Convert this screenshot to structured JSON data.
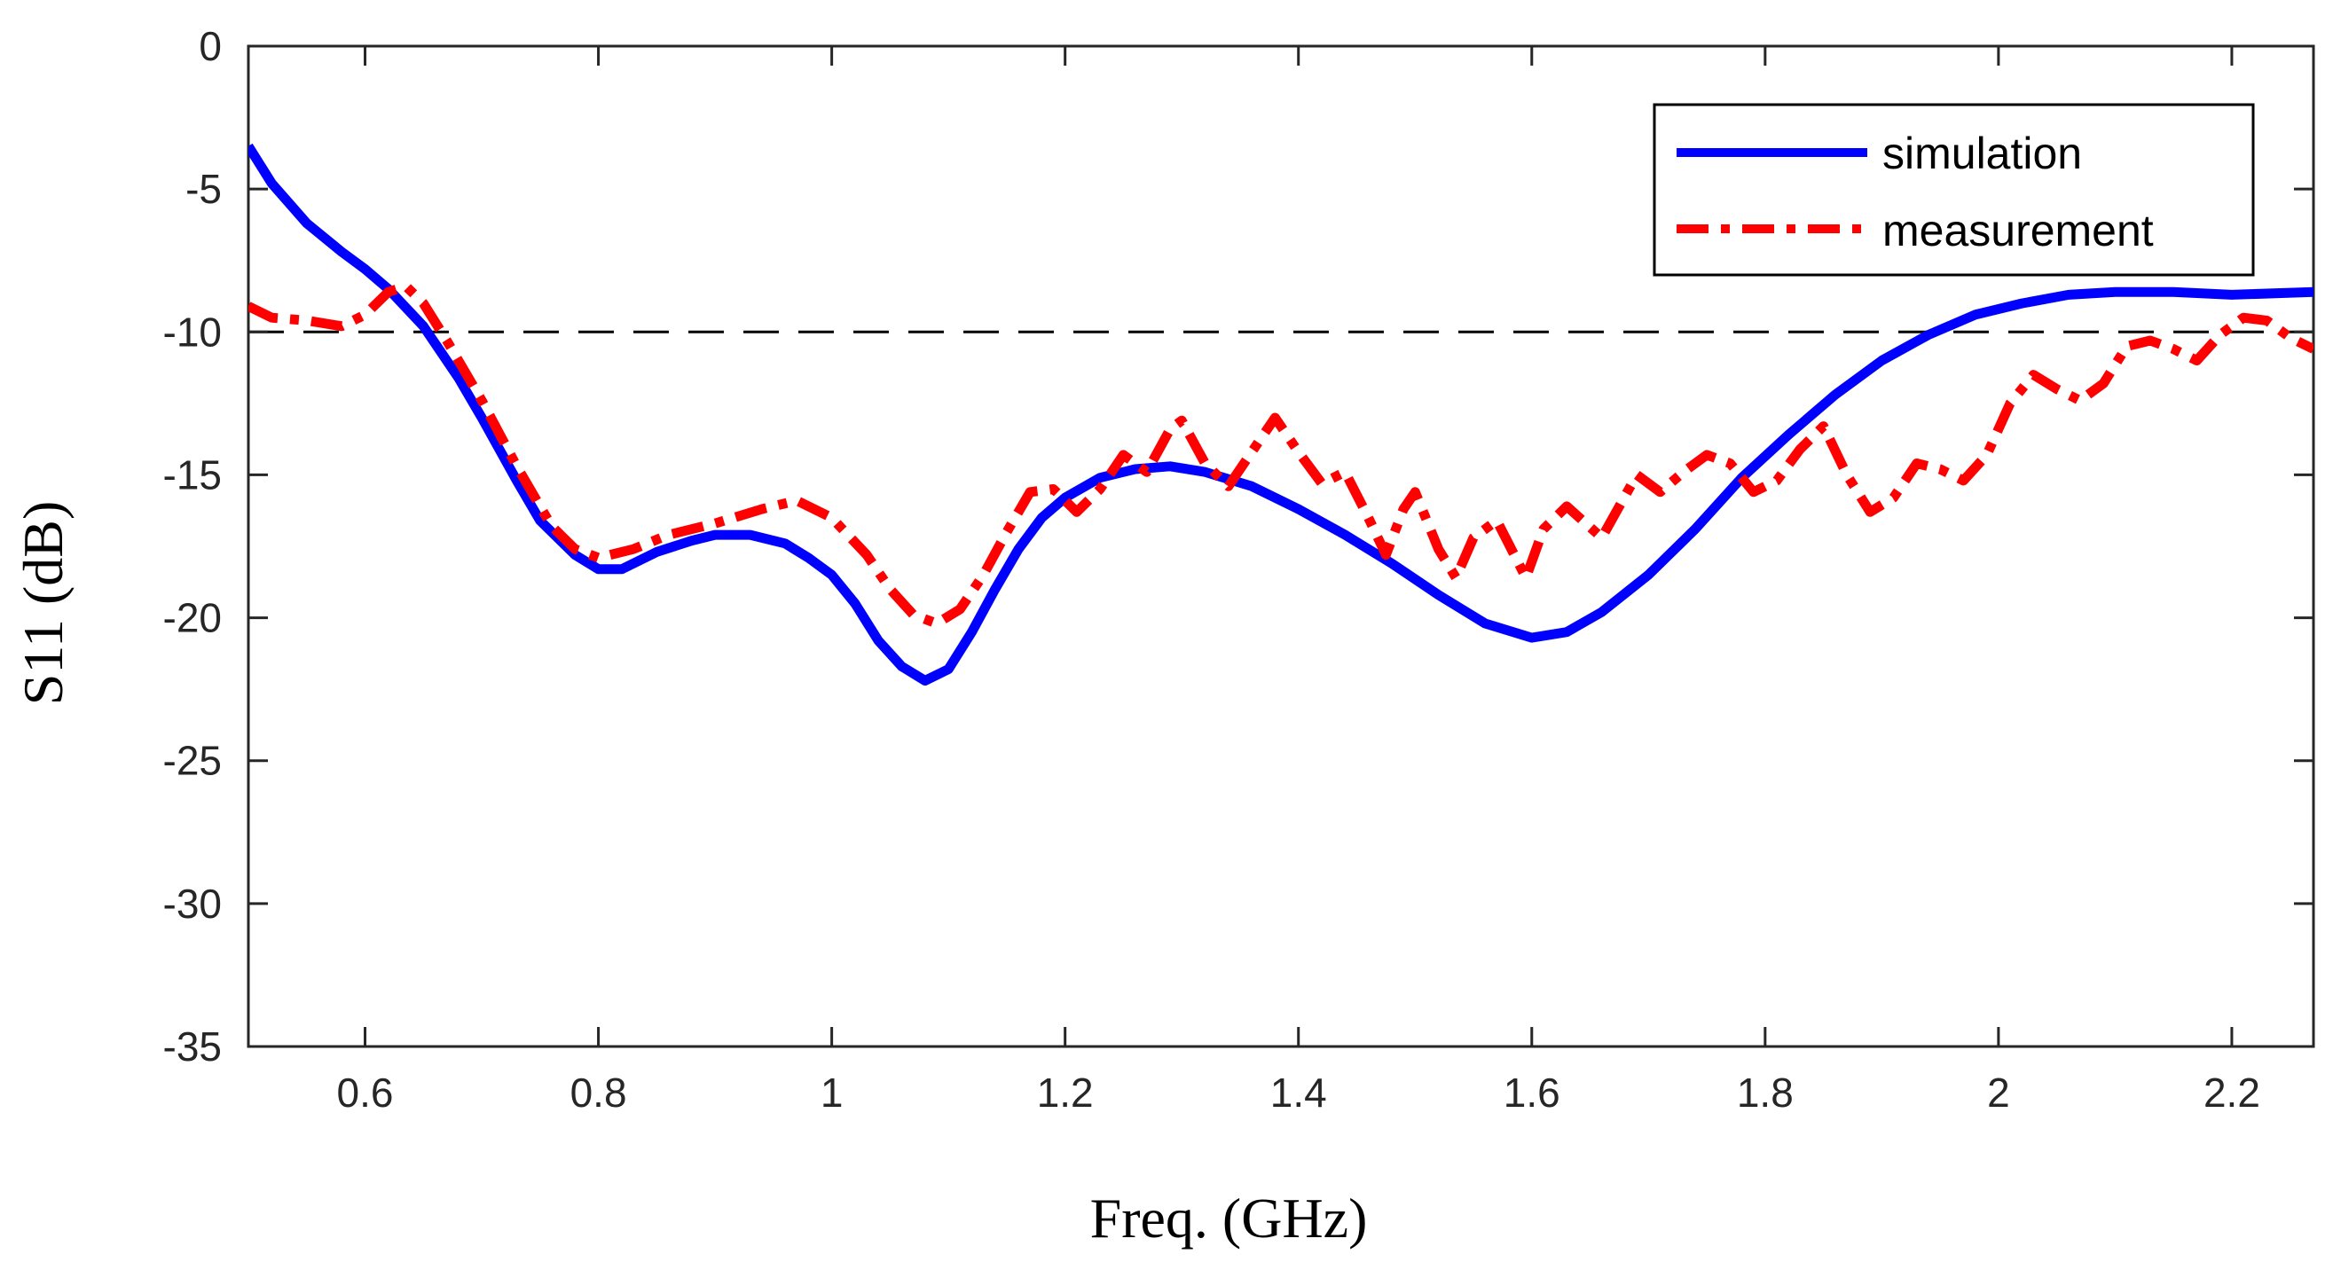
{
  "chart_data": {
    "type": "line",
    "title": "",
    "xlabel": "Freq. (GHz)",
    "ylabel": "S11 (dB)",
    "xlim": [
      0.5,
      2.27
    ],
    "ylim": [
      -35,
      0
    ],
    "xticks": [
      0.6,
      0.8,
      1,
      1.2,
      1.4,
      1.6,
      1.8,
      2,
      2.2
    ],
    "xtick_labels": [
      "0.6",
      "0.8",
      "1",
      "1.2",
      "1.4",
      "1.6",
      "1.8",
      "2",
      "2.2"
    ],
    "yticks": [
      0,
      -5,
      -10,
      -15,
      -20,
      -25,
      -30,
      -35
    ],
    "ytick_labels": [
      "0",
      "-5",
      "-10",
      "-15",
      "-20",
      "-25",
      "-30",
      "-35"
    ],
    "grid": false,
    "legend_position": "top-right",
    "reference_line": {
      "y": -10,
      "style": "dashed",
      "color": "#000000"
    },
    "series": [
      {
        "name": "simulation",
        "color": "#0000ff",
        "style": "solid",
        "points": [
          [
            0.5,
            -3.5
          ],
          [
            0.52,
            -4.8
          ],
          [
            0.55,
            -6.2
          ],
          [
            0.58,
            -7.2
          ],
          [
            0.6,
            -7.8
          ],
          [
            0.62,
            -8.5
          ],
          [
            0.65,
            -9.8
          ],
          [
            0.68,
            -11.6
          ],
          [
            0.7,
            -13.0
          ],
          [
            0.73,
            -15.2
          ],
          [
            0.75,
            -16.6
          ],
          [
            0.78,
            -17.8
          ],
          [
            0.8,
            -18.3
          ],
          [
            0.82,
            -18.3
          ],
          [
            0.85,
            -17.7
          ],
          [
            0.88,
            -17.3
          ],
          [
            0.9,
            -17.1
          ],
          [
            0.93,
            -17.1
          ],
          [
            0.96,
            -17.4
          ],
          [
            0.98,
            -17.9
          ],
          [
            1.0,
            -18.5
          ],
          [
            1.02,
            -19.5
          ],
          [
            1.04,
            -20.8
          ],
          [
            1.06,
            -21.7
          ],
          [
            1.08,
            -22.2
          ],
          [
            1.1,
            -21.8
          ],
          [
            1.12,
            -20.5
          ],
          [
            1.14,
            -19.0
          ],
          [
            1.16,
            -17.6
          ],
          [
            1.18,
            -16.5
          ],
          [
            1.2,
            -15.8
          ],
          [
            1.23,
            -15.1
          ],
          [
            1.26,
            -14.8
          ],
          [
            1.29,
            -14.7
          ],
          [
            1.32,
            -14.9
          ],
          [
            1.36,
            -15.4
          ],
          [
            1.4,
            -16.2
          ],
          [
            1.44,
            -17.1
          ],
          [
            1.48,
            -18.1
          ],
          [
            1.52,
            -19.2
          ],
          [
            1.56,
            -20.2
          ],
          [
            1.6,
            -20.7
          ],
          [
            1.63,
            -20.5
          ],
          [
            1.66,
            -19.8
          ],
          [
            1.7,
            -18.5
          ],
          [
            1.74,
            -16.9
          ],
          [
            1.78,
            -15.1
          ],
          [
            1.82,
            -13.6
          ],
          [
            1.86,
            -12.2
          ],
          [
            1.9,
            -11.0
          ],
          [
            1.94,
            -10.1
          ],
          [
            1.98,
            -9.4
          ],
          [
            2.02,
            -9.0
          ],
          [
            2.06,
            -8.7
          ],
          [
            2.1,
            -8.6
          ],
          [
            2.15,
            -8.6
          ],
          [
            2.2,
            -8.7
          ],
          [
            2.27,
            -8.6
          ]
        ]
      },
      {
        "name": "measurement",
        "color": "#ff0000",
        "style": "dash-dot",
        "points": [
          [
            0.5,
            -9.1
          ],
          [
            0.52,
            -9.5
          ],
          [
            0.55,
            -9.6
          ],
          [
            0.58,
            -9.8
          ],
          [
            0.6,
            -9.4
          ],
          [
            0.62,
            -8.6
          ],
          [
            0.635,
            -8.4
          ],
          [
            0.65,
            -9.0
          ],
          [
            0.67,
            -10.3
          ],
          [
            0.7,
            -12.4
          ],
          [
            0.73,
            -14.7
          ],
          [
            0.76,
            -16.8
          ],
          [
            0.78,
            -17.6
          ],
          [
            0.8,
            -17.9
          ],
          [
            0.83,
            -17.6
          ],
          [
            0.86,
            -17.1
          ],
          [
            0.9,
            -16.7
          ],
          [
            0.94,
            -16.2
          ],
          [
            0.97,
            -15.9
          ],
          [
            1.0,
            -16.5
          ],
          [
            1.03,
            -17.8
          ],
          [
            1.05,
            -19.0
          ],
          [
            1.07,
            -19.9
          ],
          [
            1.09,
            -20.2
          ],
          [
            1.11,
            -19.7
          ],
          [
            1.13,
            -18.5
          ],
          [
            1.15,
            -17.0
          ],
          [
            1.17,
            -15.6
          ],
          [
            1.19,
            -15.5
          ],
          [
            1.21,
            -16.3
          ],
          [
            1.23,
            -15.5
          ],
          [
            1.25,
            -14.3
          ],
          [
            1.27,
            -14.9
          ],
          [
            1.29,
            -13.4
          ],
          [
            1.3,
            -13.1
          ],
          [
            1.32,
            -14.6
          ],
          [
            1.34,
            -15.4
          ],
          [
            1.36,
            -14.2
          ],
          [
            1.38,
            -13.0
          ],
          [
            1.4,
            -14.2
          ],
          [
            1.42,
            -15.3
          ],
          [
            1.44,
            -14.9
          ],
          [
            1.46,
            -16.5
          ],
          [
            1.475,
            -17.8
          ],
          [
            1.49,
            -16.2
          ],
          [
            1.5,
            -15.6
          ],
          [
            1.52,
            -17.6
          ],
          [
            1.535,
            -18.6
          ],
          [
            1.55,
            -17.2
          ],
          [
            1.57,
            -16.6
          ],
          [
            1.58,
            -17.4
          ],
          [
            1.595,
            -18.6
          ],
          [
            1.61,
            -16.9
          ],
          [
            1.63,
            -16.1
          ],
          [
            1.66,
            -17.2
          ],
          [
            1.69,
            -15.0
          ],
          [
            1.71,
            -15.6
          ],
          [
            1.73,
            -14.9
          ],
          [
            1.75,
            -14.3
          ],
          [
            1.77,
            -14.6
          ],
          [
            1.79,
            -15.6
          ],
          [
            1.81,
            -15.2
          ],
          [
            1.83,
            -14.1
          ],
          [
            1.85,
            -13.3
          ],
          [
            1.87,
            -15.0
          ],
          [
            1.89,
            -16.3
          ],
          [
            1.91,
            -15.8
          ],
          [
            1.93,
            -14.6
          ],
          [
            1.95,
            -14.8
          ],
          [
            1.97,
            -15.2
          ],
          [
            1.99,
            -14.3
          ],
          [
            2.01,
            -12.5
          ],
          [
            2.03,
            -11.5
          ],
          [
            2.05,
            -12.0
          ],
          [
            2.07,
            -12.4
          ],
          [
            2.09,
            -11.8
          ],
          [
            2.11,
            -10.5
          ],
          [
            2.13,
            -10.3
          ],
          [
            2.15,
            -10.6
          ],
          [
            2.17,
            -11.0
          ],
          [
            2.19,
            -10.1
          ],
          [
            2.21,
            -9.5
          ],
          [
            2.23,
            -9.6
          ],
          [
            2.25,
            -10.2
          ],
          [
            2.27,
            -10.6
          ]
        ]
      }
    ]
  }
}
